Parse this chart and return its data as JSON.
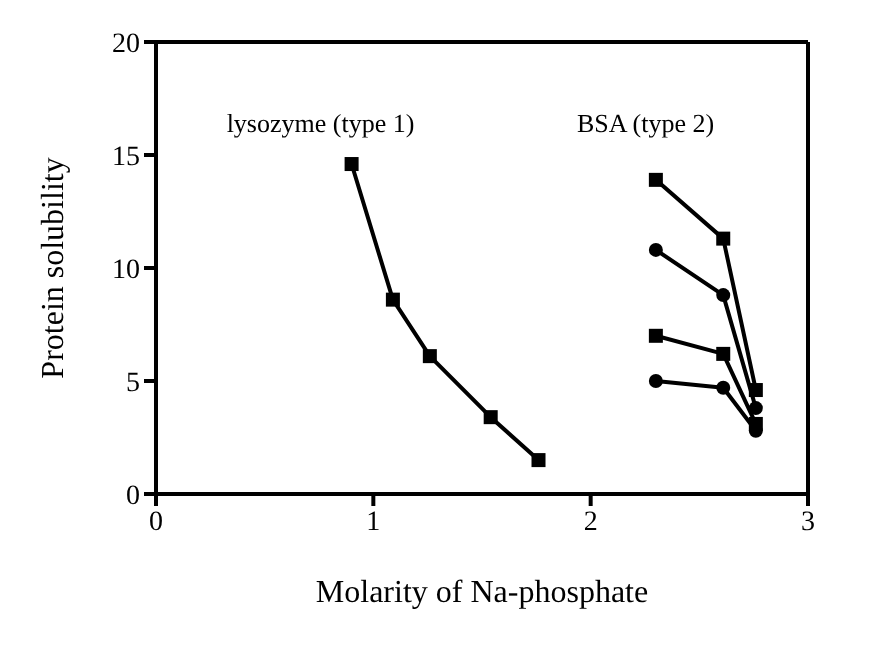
{
  "chart_data": {
    "type": "line",
    "xlabel": "Molarity of Na-phosphate",
    "ylabel": "Protein solubility",
    "xlim": [
      0,
      3
    ],
    "xticks": [
      0,
      1,
      2,
      3
    ],
    "ylim": [
      0,
      20
    ],
    "yticks": [
      0,
      5,
      10,
      15,
      20
    ],
    "annotations": [
      "lysozyme (type 1)",
      "BSA (type 2)"
    ],
    "series": [
      {
        "color": "#000000",
        "marker": "square",
        "x": [
          0.9,
          1.09,
          1.26,
          1.54,
          1.76
        ],
        "values": [
          14.6,
          8.6,
          6.1,
          3.4,
          1.5
        ]
      },
      {
        "color": "#000000",
        "marker": "square",
        "x": [
          2.3,
          2.61,
          2.76
        ],
        "values": [
          13.9,
          11.3,
          4.6
        ]
      },
      {
        "color": "#000000",
        "marker": "circle",
        "x": [
          2.3,
          2.61,
          2.76
        ],
        "values": [
          10.8,
          8.8,
          3.8
        ]
      },
      {
        "color": "#000000",
        "marker": "square",
        "x": [
          2.3,
          2.61,
          2.76
        ],
        "values": [
          7.0,
          6.2,
          3.1
        ]
      },
      {
        "color": "#000000",
        "marker": "circle",
        "x": [
          2.3,
          2.61,
          2.76
        ],
        "values": [
          5.0,
          4.7,
          2.8
        ]
      }
    ]
  }
}
